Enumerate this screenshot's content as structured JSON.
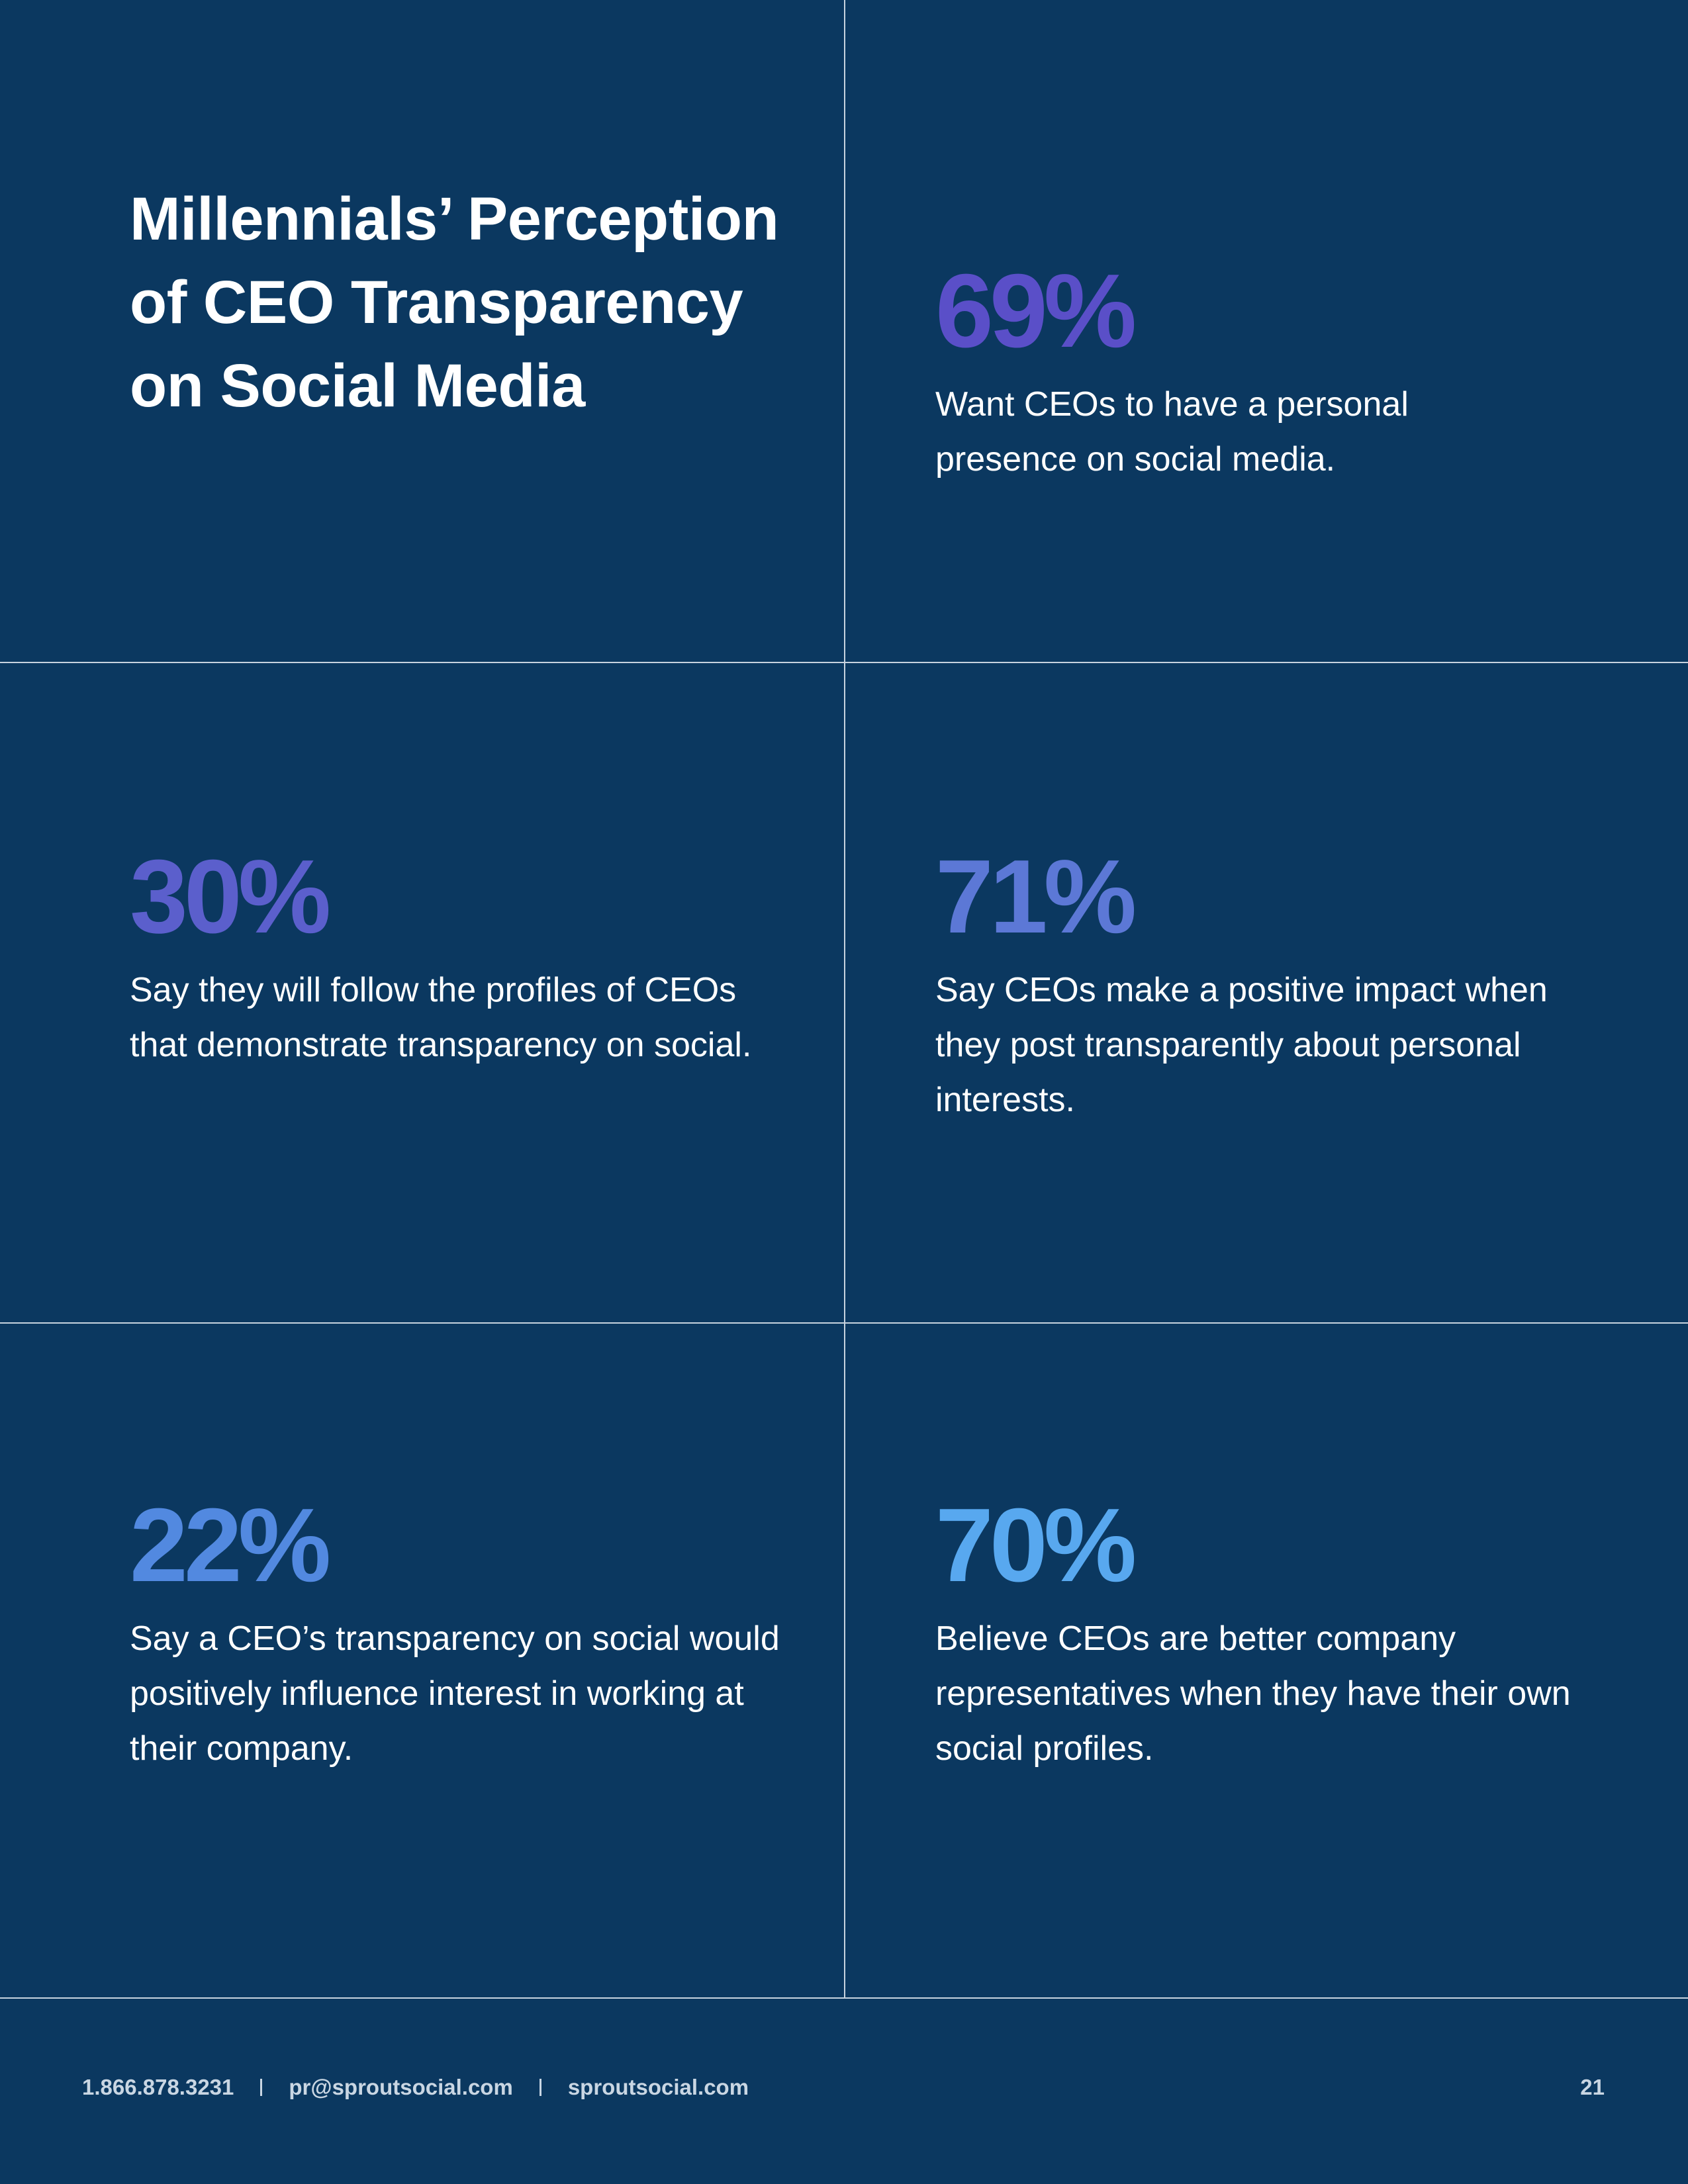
{
  "title": "Millennials’ Perception of CEO Transparency on Social Media",
  "stats": [
    {
      "value": "69%",
      "color": "#5a4fc8",
      "description": "Want CEOs to have a personal presence on social media."
    },
    {
      "value": "30%",
      "color": "#5b5fcc",
      "description": "Say they will follow the profiles of CEOs that demonstrate transparency on social."
    },
    {
      "value": "71%",
      "color": "#5c78d6",
      "description": "Say CEOs make a positive impact when they post transparently about personal interests."
    },
    {
      "value": "22%",
      "color": "#5289e0",
      "description": "Say a CEO’s transparency on social would positively influence interest in working at their company."
    },
    {
      "value": "70%",
      "color": "#58a8ef",
      "description": "Believe CEOs are better company representatives when they have their own social profiles."
    }
  ],
  "footer": {
    "phone": "1.866.878.3231",
    "email": "pr@sproutsocial.com",
    "website": "sproutsocial.com",
    "page_number": "21"
  }
}
